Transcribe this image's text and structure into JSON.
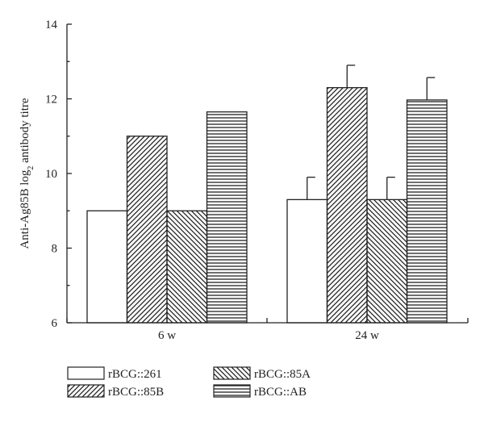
{
  "chart_data": {
    "type": "bar",
    "title": "",
    "ylabel_main": "Anti-Ag85B log",
    "ylabel_sub": "2",
    "ylabel_rest": " antibody titre",
    "xlabel": "",
    "ylim": [
      6,
      14
    ],
    "yticks": [
      "6",
      "8",
      "10",
      "12",
      "14"
    ],
    "categories": [
      "6 w",
      "24 w"
    ],
    "series": [
      {
        "name": "rBCG::261",
        "values": [
          9.0,
          9.3
        ],
        "errors": [
          0,
          0.6
        ],
        "pattern": "none"
      },
      {
        "name": "rBCG::85B",
        "values": [
          11.0,
          12.3
        ],
        "errors": [
          0,
          0.6
        ],
        "pattern": "diag-up"
      },
      {
        "name": "rBCG::85A",
        "values": [
          9.0,
          9.3
        ],
        "errors": [
          0,
          0.6
        ],
        "pattern": "diag-down"
      },
      {
        "name": "rBCG::AB",
        "values": [
          11.65,
          11.97
        ],
        "errors": [
          0,
          0.6
        ],
        "pattern": "horizontal"
      }
    ],
    "grid": false,
    "legend_position": "bottom"
  }
}
